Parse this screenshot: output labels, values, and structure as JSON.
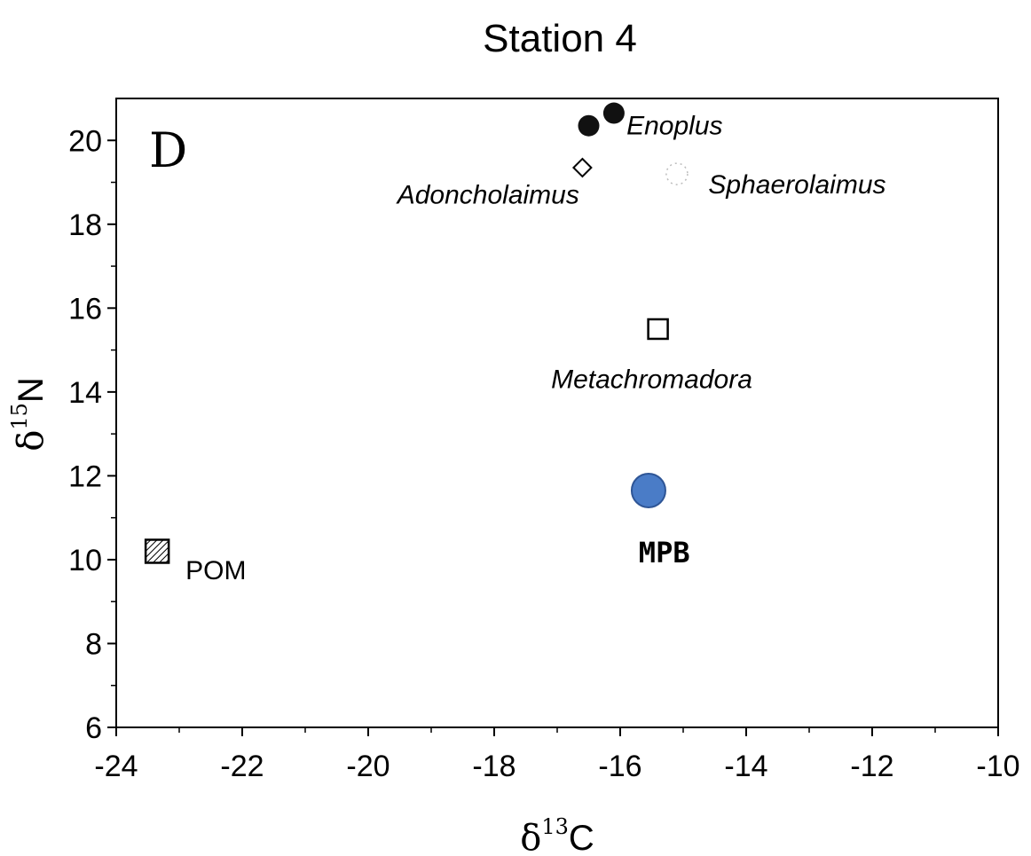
{
  "chart_data": {
    "type": "scatter",
    "title": "Station 4",
    "panel_label": "D",
    "xlabel": {
      "delta": "δ",
      "sup": "13",
      "element": "C"
    },
    "ylabel": {
      "delta": "δ",
      "sup": "15",
      "element": "N"
    },
    "xlim": [
      -24,
      -10
    ],
    "ylim": [
      6,
      21
    ],
    "xticks": [
      -24,
      -22,
      -20,
      -18,
      -16,
      -14,
      -12,
      -10
    ],
    "yticks": [
      6,
      8,
      10,
      12,
      14,
      16,
      18,
      20
    ],
    "grid": false,
    "legend": "none",
    "points": [
      {
        "label": "Enoplus",
        "marker": "filled-circle",
        "x": -16.5,
        "y": 20.35,
        "style": "italic",
        "label_dx": 0.6,
        "label_dy": 0
      },
      {
        "label": "",
        "marker": "filled-circle",
        "x": -16.1,
        "y": 20.65
      },
      {
        "label": "Adoncholaimus",
        "marker": "open-diamond",
        "x": -16.6,
        "y": 19.35,
        "style": "italic",
        "label_anchor": "end",
        "label_dx": -0.05,
        "label_dy": -0.65
      },
      {
        "label": "Sphaerolaimus",
        "marker": "faint-dotted-circle",
        "x": -15.1,
        "y": 19.2,
        "style": "italic",
        "label_dx": 0.5,
        "label_dy": -0.25
      },
      {
        "label": "Metachromadora",
        "marker": "open-square",
        "x": -15.4,
        "y": 15.5,
        "style": "italic",
        "label_anchor": "middle",
        "label_dx": -0.1,
        "label_dy": -1.2
      },
      {
        "label": "MPB",
        "marker": "blue-circle",
        "x": -15.55,
        "y": 11.65,
        "style": "bold",
        "label_anchor": "middle",
        "label_dx": 0.25,
        "label_dy": -1.5
      },
      {
        "label": "POM",
        "marker": "hatched-square",
        "x": -23.35,
        "y": 10.2,
        "style": "normal",
        "label_dx": 0.45,
        "label_dy": -0.45
      }
    ],
    "colors": {
      "axis": "#000000",
      "filled": "#111111",
      "mpb": "#4a7cc7",
      "mpb_stroke": "#2e5596",
      "faint": "#bbbbbb"
    }
  }
}
